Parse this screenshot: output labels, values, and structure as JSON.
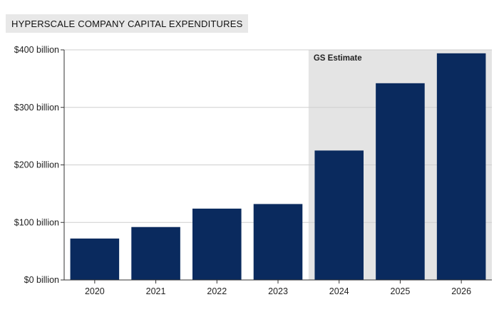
{
  "chart_data": {
    "type": "bar",
    "title": "HYPERSCALE COMPANY CAPITAL EXPENDITURES",
    "xlabel": "",
    "ylabel": "",
    "categories": [
      "2020",
      "2021",
      "2022",
      "2023",
      "2024",
      "2025",
      "2026"
    ],
    "values": [
      72,
      92,
      124,
      132,
      225,
      342,
      394
    ],
    "ylim": [
      0,
      400
    ],
    "yticks": [
      0,
      100,
      200,
      300,
      400
    ],
    "ytick_labels": [
      "$0 billion",
      "$100 billion",
      "$200 billion",
      "$300 billion",
      "$400 billion"
    ],
    "grid": true,
    "estimate_region": {
      "label": "GS Estimate",
      "from": "2024",
      "to": "2026"
    },
    "colors": {
      "bar": "#0a2a5e",
      "shade": "#e4e4e4",
      "grid": "#cfcfcf"
    }
  }
}
